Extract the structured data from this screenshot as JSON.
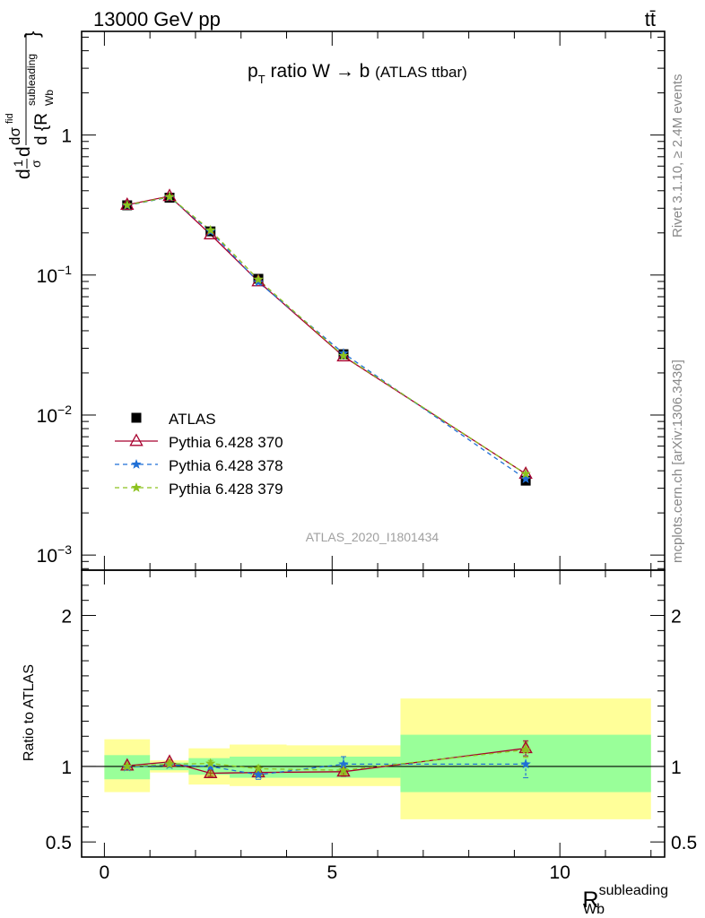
{
  "header": {
    "energy_label": "13000 GeV pp",
    "process_label": "tt̄"
  },
  "side_labels": {
    "rivet": "Rivet 3.1.10, ≥ 2.4M events",
    "mcplots": "mcplots.cern.ch [arXiv:1306.3436]"
  },
  "chart_data": [
    {
      "type": "line",
      "yscale": "log",
      "title_main": "p",
      "title_sub": "T",
      "title_rest": " ratio W → b ",
      "title_small": "(ATLAS ttbar)",
      "ylabel": "1/σ dσ^{fid}/d {R_Wb^subleading}",
      "ylabel_parts": {
        "frac1_num": "1",
        "frac1_den": "σ",
        "d1": "d",
        "d2": "d",
        "sigma_fid": "dσ",
        "fid": "fid",
        "den": "d {R",
        "sup": "subleading",
        "sub": "Wb",
        "close": "}"
      },
      "xlim": [
        -0.5,
        12.3
      ],
      "ylim": [
        0.00078,
        5.5
      ],
      "y_ticks": [
        {
          "value": 0.001,
          "base": "10",
          "exp": "−3"
        },
        {
          "value": 0.01,
          "base": "10",
          "exp": "−2"
        },
        {
          "value": 0.1,
          "base": "10",
          "exp": "−1"
        },
        {
          "value": 1,
          "base": "1",
          "exp": ""
        }
      ],
      "watermark": "ATLAS_2020_I1801434",
      "x": [
        0.5,
        1.43,
        2.33,
        3.38,
        5.25,
        9.25
      ],
      "series": [
        {
          "name": "ATLAS",
          "color": "#000000",
          "marker": "square",
          "values": [
            0.315,
            0.357,
            0.205,
            0.094,
            0.0272,
            0.0034
          ]
        },
        {
          "name": "Pythia 6.428 370",
          "color": "#a8002e",
          "marker": "triangle",
          "dash": "solid",
          "values": [
            0.317,
            0.366,
            0.195,
            0.09,
            0.0262,
            0.0038
          ]
        },
        {
          "name": "Pythia 6.428 378",
          "color": "#1f6fd6",
          "marker": "star",
          "dash": "dashed",
          "values": [
            0.314,
            0.36,
            0.205,
            0.089,
            0.0276,
            0.0035
          ]
        },
        {
          "name": "Pythia 6.428 379",
          "color": "#8cc21e",
          "marker": "star",
          "dash": "dashed",
          "values": [
            0.316,
            0.362,
            0.209,
            0.093,
            0.0265,
            0.0038
          ]
        }
      ]
    },
    {
      "type": "line",
      "ylabel": "Ratio to ATLAS",
      "xlabel_main": "R",
      "xlabel_sup": "subleading",
      "xlabel_sub": "Wb",
      "xlim": [
        -0.5,
        12.3
      ],
      "ylim": [
        0.4,
        2.3
      ],
      "x_ticks": [
        {
          "value": 0,
          "label": "0"
        },
        {
          "value": 5,
          "label": "5"
        },
        {
          "value": 10,
          "label": "10"
        }
      ],
      "y_ticks": [
        {
          "value": 0.5,
          "label": "0.5"
        },
        {
          "value": 1,
          "label": "1"
        },
        {
          "value": 2,
          "label": "2"
        }
      ],
      "bands": [
        {
          "x0": 0.0,
          "x1": 1.0,
          "inner": [
            0.915,
            1.075
          ],
          "outer": [
            0.83,
            1.18
          ]
        },
        {
          "x0": 1.0,
          "x1": 1.85,
          "inner": [
            0.975,
            1.025
          ],
          "outer": [
            0.96,
            1.04
          ]
        },
        {
          "x0": 1.85,
          "x1": 2.75,
          "inner": [
            0.945,
            1.055
          ],
          "outer": [
            0.88,
            1.12
          ]
        },
        {
          "x0": 2.75,
          "x1": 4.0,
          "inner": [
            0.925,
            1.065
          ],
          "outer": [
            0.87,
            1.145
          ]
        },
        {
          "x0": 4.0,
          "x1": 6.5,
          "inner": [
            0.925,
            1.065
          ],
          "outer": [
            0.87,
            1.14
          ]
        },
        {
          "x0": 6.5,
          "x1": 12.0,
          "inner": [
            0.83,
            1.21
          ],
          "outer": [
            0.65,
            1.45
          ]
        }
      ],
      "series": [
        {
          "name": "Pythia 6.428 370",
          "color": "#a8002e",
          "marker": "triangle",
          "dash": "solid",
          "values": [
            1.005,
            1.03,
            0.955,
            0.96,
            0.965,
            1.12
          ],
          "err": [
            0.01,
            0.012,
            0.02,
            0.02,
            0.03,
            0.05
          ]
        },
        {
          "name": "Pythia 6.428 378",
          "color": "#1f6fd6",
          "marker": "star",
          "dash": "dashed",
          "values": [
            0.995,
            1.01,
            1.0,
            0.945,
            1.015,
            1.015
          ],
          "err": [
            0.01,
            0.015,
            0.02,
            0.03,
            0.05,
            0.09
          ]
        },
        {
          "name": "Pythia 6.428 379",
          "color": "#8cc21e",
          "marker": "star",
          "dash": "dashed",
          "values": [
            1.0,
            1.015,
            1.02,
            0.985,
            0.975,
            1.11
          ],
          "err": [
            0.01,
            0.012,
            0.02,
            0.02,
            0.03,
            0.05
          ]
        }
      ]
    }
  ]
}
